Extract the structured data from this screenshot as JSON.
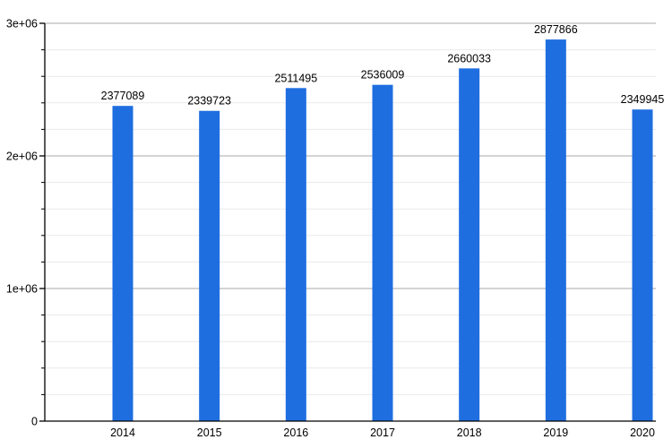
{
  "chart_data": {
    "type": "bar",
    "title": "",
    "xlabel": "",
    "ylabel": "",
    "categories": [
      "2014",
      "2015",
      "2016",
      "2017",
      "2018",
      "2019",
      "2020"
    ],
    "values": [
      2377089,
      2339723,
      2511495,
      2536009,
      2660033,
      2877866,
      2349945
    ],
    "bar_labels": [
      "2377089",
      "2339723",
      "2511495",
      "2536009",
      "2660033",
      "2877866",
      "2349945"
    ],
    "ylim": [
      0,
      3000000
    ],
    "y_major_ticks": [
      {
        "value": 0,
        "label": "0"
      },
      {
        "value": 1000000,
        "label": "1e+06"
      },
      {
        "value": 2000000,
        "label": "2e+06"
      },
      {
        "value": 3000000,
        "label": "3e+06"
      }
    ],
    "y_minor_step": 200000,
    "grid": "major-and-minor horizontal",
    "legend": "none",
    "colors": {
      "bar": "#1f6ee0",
      "major_grid": "#a8a8a8",
      "minor_grid": "#e9e9e9",
      "axis": "#000000",
      "text": "#000000",
      "background": "#ffffff"
    }
  }
}
